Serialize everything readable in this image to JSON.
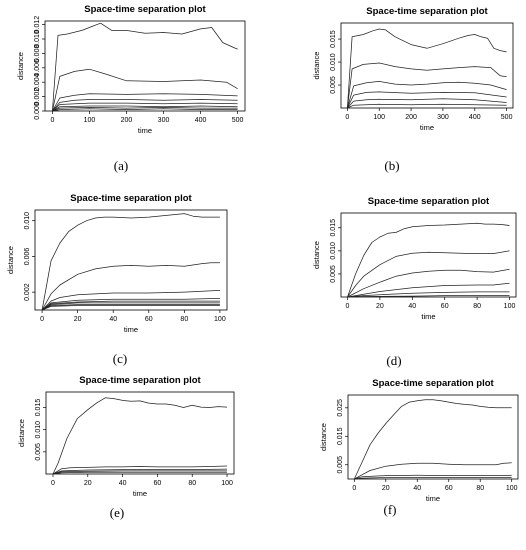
{
  "chart_data": [
    {
      "id": "a",
      "type": "line",
      "caption": "(a)",
      "title": "Space-time separation plot",
      "xlabel": "time",
      "ylabel": "distance",
      "xlim": [
        0,
        500
      ],
      "ylim": [
        0,
        0.0125
      ],
      "xticks": [
        0,
        100,
        200,
        300,
        400,
        500
      ],
      "yticks": [
        0.0,
        0.002,
        0.004,
        0.006,
        0.008,
        0.01,
        0.012
      ],
      "ytick_labels": [
        "0.000",
        "0.002",
        "0.004",
        "0.006",
        "0.008",
        "0.010",
        "0.012"
      ],
      "series": [
        {
          "x": [
            0,
            15,
            40,
            80,
            110,
            130,
            160,
            200,
            250,
            300,
            350,
            400,
            430,
            460,
            490,
            500
          ],
          "y": [
            0,
            0.0105,
            0.0107,
            0.0112,
            0.0118,
            0.0122,
            0.0112,
            0.0112,
            0.0108,
            0.0109,
            0.0107,
            0.0114,
            0.0116,
            0.0095,
            0.0088,
            0.0086
          ]
        },
        {
          "x": [
            0,
            20,
            60,
            100,
            140,
            200,
            300,
            400,
            470,
            500
          ],
          "y": [
            0,
            0.0048,
            0.0055,
            0.0058,
            0.0052,
            0.0042,
            0.0041,
            0.0043,
            0.004,
            0.0031
          ]
        },
        {
          "x": [
            0,
            20,
            60,
            100,
            200,
            300,
            400,
            500
          ],
          "y": [
            0,
            0.0018,
            0.0022,
            0.0024,
            0.0023,
            0.0024,
            0.0023,
            0.0021
          ]
        },
        {
          "x": [
            0,
            20,
            60,
            100,
            200,
            300,
            400,
            500
          ],
          "y": [
            0,
            0.0012,
            0.0015,
            0.0016,
            0.0016,
            0.0015,
            0.0016,
            0.0015
          ]
        },
        {
          "x": [
            0,
            20,
            100,
            200,
            300,
            400,
            500
          ],
          "y": [
            0,
            0.0009,
            0.0011,
            0.0011,
            0.001,
            0.0011,
            0.001
          ]
        },
        {
          "x": [
            0,
            20,
            100,
            200,
            300,
            400,
            500
          ],
          "y": [
            0,
            0.0006,
            0.0007,
            0.0007,
            0.0006,
            0.0007,
            0.0006
          ]
        },
        {
          "x": [
            0,
            20,
            100,
            200,
            300,
            400,
            500
          ],
          "y": [
            0,
            0.0004,
            0.0005,
            0.0004,
            0.0005,
            0.0004,
            0.0004
          ]
        },
        {
          "x": [
            0,
            20,
            100,
            200,
            300,
            400,
            500
          ],
          "y": [
            0,
            0.0002,
            0.0003,
            0.0002,
            0.0003,
            0.0002,
            0.0002
          ]
        }
      ]
    },
    {
      "id": "b",
      "type": "line",
      "caption": "(b)",
      "title": "Space-time separation plot",
      "xlabel": "time",
      "ylabel": "distance",
      "xlim": [
        0,
        500
      ],
      "ylim": [
        0,
        0.0185
      ],
      "xticks": [
        0,
        100,
        200,
        300,
        400,
        500
      ],
      "yticks": [
        0.005,
        0.01,
        0.015
      ],
      "ytick_labels": [
        "0.005",
        "0.010",
        "0.015"
      ],
      "series": [
        {
          "x": [
            0,
            15,
            50,
            80,
            100,
            120,
            150,
            200,
            250,
            300,
            350,
            380,
            400,
            420,
            440,
            460,
            480,
            500
          ],
          "y": [
            0,
            0.0155,
            0.016,
            0.0168,
            0.0172,
            0.017,
            0.0155,
            0.0138,
            0.013,
            0.014,
            0.0152,
            0.0158,
            0.016,
            0.0155,
            0.0152,
            0.013,
            0.0125,
            0.0122
          ]
        },
        {
          "x": [
            0,
            15,
            50,
            100,
            150,
            200,
            250,
            300,
            350,
            400,
            450,
            480,
            500
          ],
          "y": [
            0,
            0.0085,
            0.0095,
            0.0098,
            0.009,
            0.0085,
            0.0082,
            0.0085,
            0.0088,
            0.009,
            0.0088,
            0.007,
            0.0068
          ]
        },
        {
          "x": [
            0,
            20,
            60,
            100,
            150,
            200,
            250,
            300,
            350,
            400,
            450,
            500
          ],
          "y": [
            0,
            0.0048,
            0.0055,
            0.0058,
            0.0052,
            0.005,
            0.0052,
            0.0055,
            0.0056,
            0.0054,
            0.005,
            0.004
          ]
        },
        {
          "x": [
            0,
            20,
            60,
            100,
            200,
            300,
            400,
            500
          ],
          "y": [
            0,
            0.0028,
            0.0034,
            0.0035,
            0.0032,
            0.0034,
            0.0033,
            0.0024
          ]
        },
        {
          "x": [
            0,
            20,
            60,
            100,
            200,
            300,
            400,
            500
          ],
          "y": [
            0,
            0.0015,
            0.0018,
            0.0019,
            0.0018,
            0.002,
            0.0018,
            0.0012
          ]
        },
        {
          "x": [
            0,
            20,
            100,
            200,
            300,
            400,
            500
          ],
          "y": [
            0,
            0.0006,
            0.0008,
            0.0007,
            0.0008,
            0.0007,
            0.0006
          ]
        }
      ]
    },
    {
      "id": "c",
      "type": "line",
      "caption": "(c)",
      "title": "Space-time separation plot",
      "xlabel": "time",
      "ylabel": "distance",
      "xlim": [
        0,
        100
      ],
      "ylim": [
        0,
        0.0112
      ],
      "xticks": [
        0,
        20,
        40,
        60,
        80,
        100
      ],
      "yticks": [
        0.002,
        0.006,
        0.01
      ],
      "ytick_labels": [
        "0.002",
        "0.006",
        "0.010"
      ],
      "series": [
        {
          "x": [
            0,
            5,
            10,
            15,
            20,
            25,
            30,
            35,
            40,
            50,
            60,
            70,
            80,
            85,
            90,
            95,
            100
          ],
          "y": [
            0,
            0.0055,
            0.0075,
            0.0088,
            0.0095,
            0.01,
            0.0103,
            0.0104,
            0.0104,
            0.0103,
            0.0104,
            0.0106,
            0.0108,
            0.0105,
            0.0104,
            0.0104,
            0.0104
          ]
        },
        {
          "x": [
            0,
            5,
            10,
            20,
            30,
            40,
            50,
            60,
            70,
            80,
            90,
            95,
            100
          ],
          "y": [
            0,
            0.0018,
            0.0028,
            0.004,
            0.0046,
            0.0049,
            0.005,
            0.0049,
            0.005,
            0.0049,
            0.0052,
            0.0053,
            0.0053
          ]
        },
        {
          "x": [
            0,
            5,
            10,
            20,
            40,
            60,
            80,
            90,
            100
          ],
          "y": [
            0,
            0.001,
            0.0014,
            0.0017,
            0.0019,
            0.0019,
            0.002,
            0.0021,
            0.0022
          ]
        },
        {
          "x": [
            0,
            5,
            20,
            40,
            60,
            80,
            100
          ],
          "y": [
            0,
            0.0008,
            0.0011,
            0.0012,
            0.0012,
            0.0012,
            0.0013
          ]
        },
        {
          "x": [
            0,
            5,
            20,
            40,
            60,
            80,
            100
          ],
          "y": [
            0,
            0.0007,
            0.0009,
            0.001,
            0.001,
            0.001,
            0.001
          ]
        },
        {
          "x": [
            0,
            5,
            20,
            40,
            60,
            80,
            100
          ],
          "y": [
            0,
            0.0006,
            0.0008,
            0.0008,
            0.0008,
            0.0008,
            0.0008
          ]
        },
        {
          "x": [
            0,
            5,
            20,
            40,
            60,
            80,
            100
          ],
          "y": [
            0,
            0.0005,
            0.0006,
            0.0006,
            0.0006,
            0.0006,
            0.0006
          ]
        },
        {
          "x": [
            0,
            5,
            20,
            40,
            60,
            80,
            100
          ],
          "y": [
            0,
            0.0004,
            0.0005,
            0.0005,
            0.0005,
            0.0005,
            0.0005
          ]
        }
      ]
    },
    {
      "id": "d",
      "type": "line",
      "caption": "(d)",
      "title": "Space-time separation plot",
      "xlabel": "time",
      "ylabel": "distance",
      "xlim": [
        0,
        100
      ],
      "ylim": [
        0,
        0.0182
      ],
      "xticks": [
        0,
        20,
        40,
        60,
        80,
        100
      ],
      "yticks": [
        0.005,
        0.01,
        0.015
      ],
      "ytick_labels": [
        "0.005",
        "0.010",
        "0.015"
      ],
      "series": [
        {
          "x": [
            0,
            5,
            10,
            15,
            20,
            25,
            30,
            35,
            40,
            50,
            60,
            70,
            80,
            85,
            90,
            95,
            100
          ],
          "y": [
            0,
            0.005,
            0.009,
            0.0118,
            0.013,
            0.0138,
            0.014,
            0.0148,
            0.0152,
            0.0155,
            0.0156,
            0.0158,
            0.016,
            0.0158,
            0.0158,
            0.0157,
            0.0155
          ]
        },
        {
          "x": [
            0,
            5,
            10,
            20,
            30,
            40,
            50,
            60,
            70,
            80,
            90,
            100
          ],
          "y": [
            0,
            0.0025,
            0.0045,
            0.007,
            0.0088,
            0.0095,
            0.0097,
            0.0096,
            0.0095,
            0.0094,
            0.0094,
            0.01
          ]
        },
        {
          "x": [
            0,
            10,
            20,
            30,
            40,
            50,
            60,
            70,
            80,
            90,
            100
          ],
          "y": [
            0,
            0.0018,
            0.0032,
            0.0045,
            0.0052,
            0.0056,
            0.0058,
            0.0058,
            0.0055,
            0.0054,
            0.006
          ]
        },
        {
          "x": [
            0,
            10,
            20,
            40,
            60,
            80,
            90,
            100
          ],
          "y": [
            0,
            0.0006,
            0.0012,
            0.002,
            0.0025,
            0.0026,
            0.0026,
            0.003
          ]
        },
        {
          "x": [
            0,
            10,
            20,
            40,
            60,
            80,
            100
          ],
          "y": [
            0,
            0.0003,
            0.0005,
            0.0008,
            0.001,
            0.0011,
            0.0011
          ]
        },
        {
          "x": [
            0,
            10,
            40,
            60,
            80,
            100
          ],
          "y": [
            0,
            0.0001,
            0.0002,
            0.0003,
            0.0003,
            0.0003
          ]
        }
      ]
    },
    {
      "id": "e",
      "type": "line",
      "caption": "(e)",
      "title": "Space-time separation plot",
      "xlabel": "time",
      "ylabel": "distance",
      "xlim": [
        0,
        100
      ],
      "ylim": [
        0,
        0.0185
      ],
      "xticks": [
        0,
        20,
        40,
        60,
        80,
        100
      ],
      "yticks": [
        0.005,
        0.01,
        0.015
      ],
      "ytick_labels": [
        "0.005",
        "0.010",
        "0.015"
      ],
      "series": [
        {
          "x": [
            0,
            3,
            8,
            14,
            20,
            25,
            30,
            35,
            40,
            45,
            50,
            55,
            60,
            65,
            70,
            75,
            80,
            85,
            90,
            95,
            100
          ],
          "y": [
            0,
            0.0025,
            0.008,
            0.0125,
            0.0145,
            0.016,
            0.0172,
            0.017,
            0.0166,
            0.0164,
            0.0165,
            0.016,
            0.0158,
            0.0158,
            0.0155,
            0.015,
            0.0155,
            0.0151,
            0.015,
            0.0152,
            0.0151
          ]
        },
        {
          "x": [
            0,
            5,
            10,
            20,
            30,
            40,
            50,
            60,
            70,
            80,
            90,
            100
          ],
          "y": [
            0,
            0.0012,
            0.0014,
            0.0015,
            0.0016,
            0.0016,
            0.0017,
            0.0016,
            0.0016,
            0.0016,
            0.0017,
            0.0018
          ]
        },
        {
          "x": [
            0,
            5,
            20,
            40,
            60,
            80,
            100
          ],
          "y": [
            0,
            0.0007,
            0.0009,
            0.001,
            0.001,
            0.001,
            0.0011
          ]
        },
        {
          "x": [
            0,
            5,
            20,
            40,
            60,
            80,
            100
          ],
          "y": [
            0,
            0.0005,
            0.0006,
            0.0007,
            0.0007,
            0.0007,
            0.0007
          ]
        },
        {
          "x": [
            0,
            5,
            20,
            40,
            60,
            80,
            100
          ],
          "y": [
            0,
            0.0003,
            0.0004,
            0.0004,
            0.0004,
            0.0004,
            0.0004
          ]
        }
      ]
    },
    {
      "id": "f",
      "type": "line",
      "caption": "(f)",
      "title": "Space-time separation plot",
      "xlabel": "time",
      "ylabel": "distance",
      "xlim": [
        0,
        100
      ],
      "ylim": [
        0,
        0.0295
      ],
      "xticks": [
        0,
        20,
        40,
        60,
        80,
        100
      ],
      "yticks": [
        0.005,
        0.015,
        0.025
      ],
      "ytick_labels": [
        "0.005",
        "0.015",
        "0.025"
      ],
      "series": [
        {
          "x": [
            0,
            5,
            10,
            15,
            20,
            25,
            30,
            35,
            40,
            45,
            50,
            55,
            60,
            65,
            70,
            75,
            80,
            85,
            90,
            95,
            100
          ],
          "y": [
            0,
            0.006,
            0.012,
            0.016,
            0.0195,
            0.0225,
            0.0255,
            0.027,
            0.0275,
            0.0278,
            0.0278,
            0.0275,
            0.027,
            0.0265,
            0.0262,
            0.026,
            0.0255,
            0.0252,
            0.025,
            0.025,
            0.025
          ]
        },
        {
          "x": [
            0,
            5,
            10,
            20,
            30,
            40,
            50,
            60,
            70,
            80,
            90,
            95,
            100
          ],
          "y": [
            0,
            0.0015,
            0.003,
            0.0045,
            0.0052,
            0.0055,
            0.0055,
            0.0052,
            0.005,
            0.005,
            0.005,
            0.0055,
            0.0057
          ]
        },
        {
          "x": [
            0,
            5,
            20,
            40,
            60,
            80,
            100
          ],
          "y": [
            0,
            0.0008,
            0.0012,
            0.0013,
            0.0012,
            0.0012,
            0.0013
          ]
        },
        {
          "x": [
            0,
            5,
            20,
            40,
            60,
            80,
            100
          ],
          "y": [
            0,
            0.0003,
            0.0005,
            0.0005,
            0.0005,
            0.0005,
            0.0005
          ]
        }
      ]
    }
  ]
}
